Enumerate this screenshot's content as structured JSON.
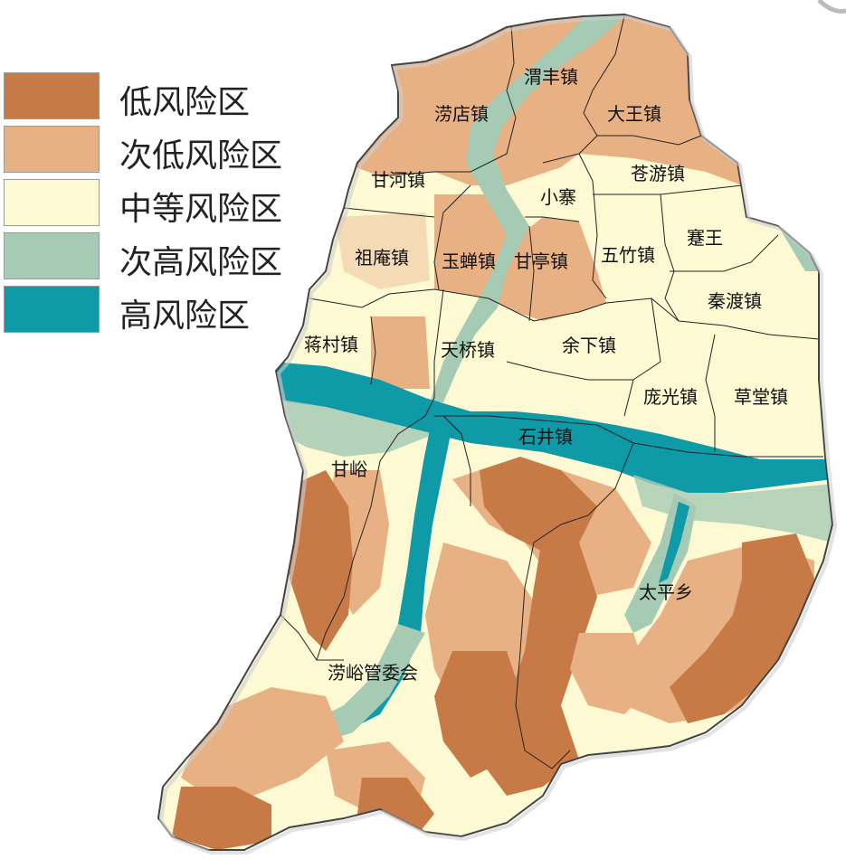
{
  "legend": {
    "items": [
      {
        "label": "低风险区",
        "color": "#c87a46"
      },
      {
        "label": "次低风险区",
        "color": "#e8b183"
      },
      {
        "label": "中等风险区",
        "color": "#fdf9d2"
      },
      {
        "label": "次高风险区",
        "color": "#a6cbb5"
      },
      {
        "label": "高风险区",
        "color": "#0f9aa7"
      }
    ]
  },
  "map": {
    "towns": {
      "weifeng": "渭丰镇",
      "laodian": "涝店镇",
      "dawang": "大王镇",
      "ganhe": "甘河镇",
      "cangyou": "苍游镇",
      "xiaozhai": "小寨",
      "zuan": "祖庵镇",
      "yuchan": "玉蝉镇",
      "ganting": "甘亭镇",
      "wuzhu": "五竹镇",
      "jianwang": "蹇王",
      "qindu": "秦渡镇",
      "jiangcun": "蒋村镇",
      "tianqiao": "天桥镇",
      "yuxia": "余下镇",
      "pangguang": "庞光镇",
      "caotang": "草堂镇",
      "shijing": "石井镇",
      "ganyu": "甘峪",
      "taiping": "太平乡",
      "laoyu": "涝峪管委会"
    }
  }
}
